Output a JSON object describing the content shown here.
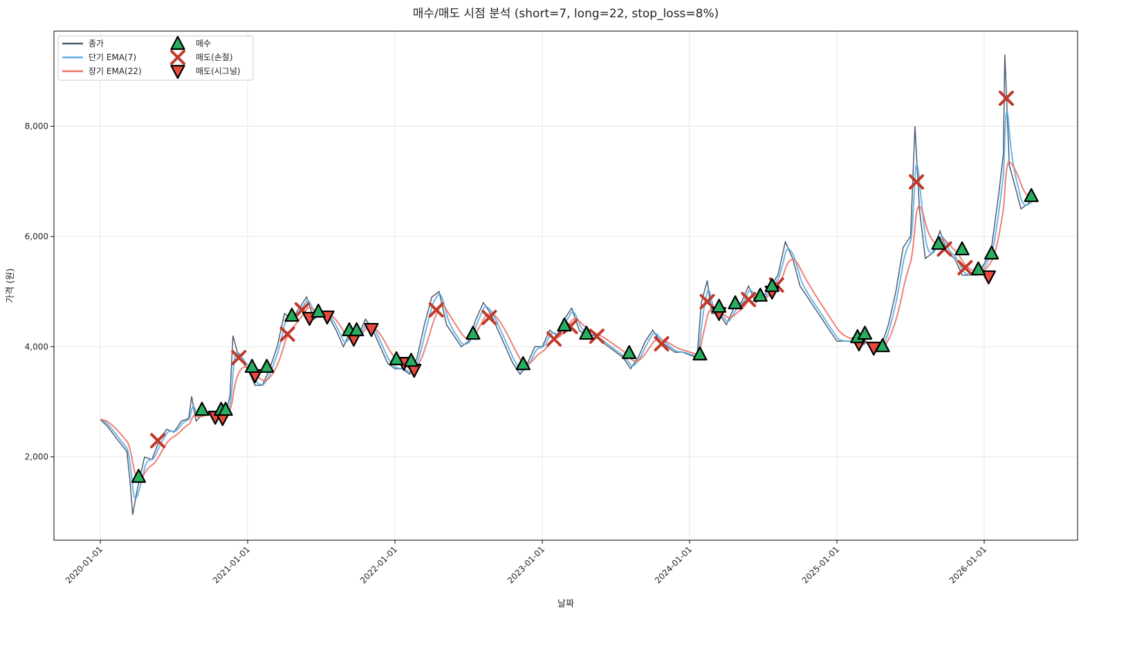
{
  "chart_data": {
    "type": "line",
    "title": "매수/매도 시점 분석 (short=7, long=22, stop_loss=8%)",
    "xlabel": "날짜",
    "ylabel": "가격 (원)",
    "x_unit": "decimal year",
    "xlim": [
      2019.685,
      2026.634
    ],
    "ylim": [
      490,
      9725
    ],
    "grid": true,
    "legend_placement": "top-left",
    "x_ticks": [
      {
        "value": 2020,
        "label": "2020-01-01"
      },
      {
        "value": 2021,
        "label": "2021-01-01"
      },
      {
        "value": 2022,
        "label": "2022-01-01"
      },
      {
        "value": 2023,
        "label": "2023-01-01"
      },
      {
        "value": 2024,
        "label": "2024-01-01"
      },
      {
        "value": 2025,
        "label": "2025-01-01"
      },
      {
        "value": 2026,
        "label": "2026-01-01"
      }
    ],
    "y_ticks": [
      {
        "value": 2000,
        "label": "2,000"
      },
      {
        "value": 4000,
        "label": "4,000"
      },
      {
        "value": 6000,
        "label": "6,000"
      },
      {
        "value": 8000,
        "label": "8,000"
      }
    ],
    "legend": [
      {
        "key": "close",
        "label": "종가"
      },
      {
        "key": "ema_short",
        "label": "단기 EMA(7)"
      },
      {
        "key": "ema_long",
        "label": "장기 EMA(22)"
      },
      {
        "key": "buy",
        "label": "매수"
      },
      {
        "key": "sell_stop",
        "label": "매도(손절)"
      },
      {
        "key": "sell_signal",
        "label": "매도(시그널)"
      }
    ],
    "colors": {
      "close": "#4a5a6e",
      "ema_short": "#5dade2",
      "ema_long": "#ec7063",
      "buy": "#27ae60",
      "sell_stop": "#c0392b",
      "sell_signal": "#e74c3c"
    },
    "ema_spans": {
      "short": 7,
      "long": 22
    },
    "close": [
      [
        2020.0,
        2680
      ],
      [
        2020.05,
        2550
      ],
      [
        2020.12,
        2300
      ],
      [
        2020.18,
        2100
      ],
      [
        2020.2,
        1600
      ],
      [
        2020.22,
        950
      ],
      [
        2020.25,
        1400
      ],
      [
        2020.3,
        2000
      ],
      [
        2020.35,
        1950
      ],
      [
        2020.4,
        2300
      ],
      [
        2020.45,
        2500
      ],
      [
        2020.5,
        2450
      ],
      [
        2020.55,
        2650
      ],
      [
        2020.6,
        2700
      ],
      [
        2020.62,
        3100
      ],
      [
        2020.65,
        2650
      ],
      [
        2020.7,
        2800
      ],
      [
        2020.78,
        2750
      ],
      [
        2020.85,
        2800
      ],
      [
        2020.88,
        3100
      ],
      [
        2020.9,
        4200
      ],
      [
        2020.93,
        3900
      ],
      [
        2020.97,
        3700
      ],
      [
        2021.0,
        3600
      ],
      [
        2021.05,
        3300
      ],
      [
        2021.1,
        3300
      ],
      [
        2021.15,
        3600
      ],
      [
        2021.2,
        4000
      ],
      [
        2021.25,
        4600
      ],
      [
        2021.3,
        4500
      ],
      [
        2021.35,
        4700
      ],
      [
        2021.4,
        4900
      ],
      [
        2021.45,
        4500
      ],
      [
        2021.5,
        4600
      ],
      [
        2021.55,
        4550
      ],
      [
        2021.6,
        4300
      ],
      [
        2021.65,
        4000
      ],
      [
        2021.7,
        4300
      ],
      [
        2021.75,
        4200
      ],
      [
        2021.8,
        4500
      ],
      [
        2021.85,
        4300
      ],
      [
        2021.9,
        4000
      ],
      [
        2021.95,
        3700
      ],
      [
        2022.0,
        3600
      ],
      [
        2022.05,
        3600
      ],
      [
        2022.1,
        3500
      ],
      [
        2022.15,
        3800
      ],
      [
        2022.2,
        4400
      ],
      [
        2022.25,
        4900
      ],
      [
        2022.3,
        5000
      ],
      [
        2022.35,
        4400
      ],
      [
        2022.4,
        4200
      ],
      [
        2022.45,
        4000
      ],
      [
        2022.5,
        4100
      ],
      [
        2022.55,
        4500
      ],
      [
        2022.6,
        4800
      ],
      [
        2022.65,
        4600
      ],
      [
        2022.7,
        4300
      ],
      [
        2022.75,
        4000
      ],
      [
        2022.8,
        3700
      ],
      [
        2022.85,
        3500
      ],
      [
        2022.9,
        3700
      ],
      [
        2022.95,
        4000
      ],
      [
        2023.0,
        4000
      ],
      [
        2023.05,
        4300
      ],
      [
        2023.1,
        4200
      ],
      [
        2023.15,
        4500
      ],
      [
        2023.2,
        4700
      ],
      [
        2023.25,
        4300
      ],
      [
        2023.3,
        4200
      ],
      [
        2023.35,
        4200
      ],
      [
        2023.4,
        4100
      ],
      [
        2023.45,
        4000
      ],
      [
        2023.5,
        3900
      ],
      [
        2023.55,
        3800
      ],
      [
        2023.6,
        3600
      ],
      [
        2023.65,
        3800
      ],
      [
        2023.7,
        4100
      ],
      [
        2023.75,
        4300
      ],
      [
        2023.8,
        4100
      ],
      [
        2023.85,
        4000
      ],
      [
        2023.9,
        3900
      ],
      [
        2023.95,
        3900
      ],
      [
        2024.0,
        3850
      ],
      [
        2024.05,
        3800
      ],
      [
        2024.08,
        4800
      ],
      [
        2024.12,
        5200
      ],
      [
        2024.15,
        4600
      ],
      [
        2024.2,
        4600
      ],
      [
        2024.25,
        4400
      ],
      [
        2024.3,
        4700
      ],
      [
        2024.35,
        4800
      ],
      [
        2024.4,
        5100
      ],
      [
        2024.45,
        4800
      ],
      [
        2024.5,
        4900
      ],
      [
        2024.55,
        5100
      ],
      [
        2024.6,
        5300
      ],
      [
        2024.65,
        5900
      ],
      [
        2024.7,
        5600
      ],
      [
        2024.75,
        5100
      ],
      [
        2024.8,
        4900
      ],
      [
        2024.85,
        4700
      ],
      [
        2024.9,
        4500
      ],
      [
        2024.95,
        4300
      ],
      [
        2025.0,
        4100
      ],
      [
        2025.05,
        4100
      ],
      [
        2025.1,
        4100
      ],
      [
        2025.15,
        4000
      ],
      [
        2025.2,
        4100
      ],
      [
        2025.25,
        3900
      ],
      [
        2025.3,
        4000
      ],
      [
        2025.35,
        4400
      ],
      [
        2025.4,
        5000
      ],
      [
        2025.45,
        5800
      ],
      [
        2025.5,
        6000
      ],
      [
        2025.53,
        8000
      ],
      [
        2025.56,
        6500
      ],
      [
        2025.6,
        5600
      ],
      [
        2025.65,
        5700
      ],
      [
        2025.7,
        6100
      ],
      [
        2025.75,
        5700
      ],
      [
        2025.8,
        5600
      ],
      [
        2025.85,
        5300
      ],
      [
        2025.9,
        5300
      ],
      [
        2025.95,
        5300
      ],
      [
        2026.0,
        5500
      ],
      [
        2026.05,
        5800
      ],
      [
        2026.1,
        6800
      ],
      [
        2026.13,
        7500
      ],
      [
        2026.14,
        9300
      ],
      [
        2026.17,
        7300
      ],
      [
        2026.2,
        7000
      ],
      [
        2026.25,
        6500
      ],
      [
        2026.3,
        6600
      ],
      [
        2026.33,
        6700
      ]
    ],
    "buy": [
      [
        2020.26,
        1644
      ],
      [
        2020.69,
        2861
      ],
      [
        2020.82,
        2861
      ],
      [
        2020.85,
        2861
      ],
      [
        2021.03,
        3640
      ],
      [
        2021.13,
        3640
      ],
      [
        2021.3,
        4567
      ],
      [
        2021.48,
        4642
      ],
      [
        2021.69,
        4304
      ],
      [
        2021.74,
        4304
      ],
      [
        2022.01,
        3777
      ],
      [
        2022.11,
        3750
      ],
      [
        2022.53,
        4241
      ],
      [
        2022.87,
        3689
      ],
      [
        2023.15,
        4391
      ],
      [
        2023.3,
        4241
      ],
      [
        2023.59,
        3890
      ],
      [
        2024.07,
        3865
      ],
      [
        2024.2,
        4730
      ],
      [
        2024.31,
        4793
      ],
      [
        2024.48,
        4931
      ],
      [
        2024.56,
        5107
      ],
      [
        2025.14,
        4178
      ],
      [
        2025.19,
        4241
      ],
      [
        2025.31,
        4015
      ],
      [
        2025.69,
        5872
      ],
      [
        2025.85,
        5772
      ],
      [
        2025.96,
        5408
      ],
      [
        2026.05,
        5696
      ],
      [
        2026.32,
        6738
      ]
    ],
    "sell_stop": [
      [
        2020.39,
        2296
      ],
      [
        2020.94,
        3802
      ],
      [
        2021.27,
        4228
      ],
      [
        2021.37,
        4668
      ],
      [
        2022.28,
        4668
      ],
      [
        2022.64,
        4530
      ],
      [
        2023.08,
        4140
      ],
      [
        2023.19,
        4366
      ],
      [
        2023.37,
        4190
      ],
      [
        2023.81,
        4053
      ],
      [
        2024.12,
        4818
      ],
      [
        2024.4,
        4856
      ],
      [
        2024.59,
        5119
      ],
      [
        2025.54,
        6989
      ],
      [
        2025.73,
        5772
      ],
      [
        2025.87,
        5433
      ],
      [
        2026.15,
        8507
      ]
    ],
    "sell_signal": [
      [
        2020.78,
        2723
      ],
      [
        2020.83,
        2700
      ],
      [
        2021.05,
        3476
      ],
      [
        2021.42,
        4517
      ],
      [
        2021.54,
        4542
      ],
      [
        2021.72,
        4140
      ],
      [
        2021.84,
        4316
      ],
      [
        2022.06,
        3701
      ],
      [
        2022.13,
        3576
      ],
      [
        2024.2,
        4605
      ],
      [
        2024.56,
        4994
      ],
      [
        2025.15,
        4053
      ],
      [
        2025.25,
        3977
      ],
      [
        2026.03,
        5270
      ]
    ]
  }
}
